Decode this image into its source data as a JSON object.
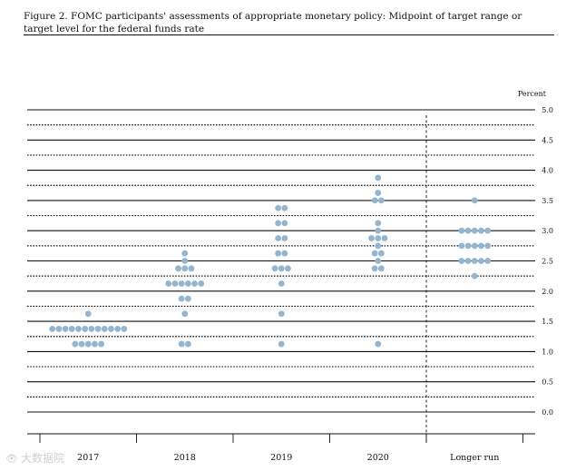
{
  "figure_title": "Figure 2. FOMC participants' assessments of appropriate monetary policy: Midpoint of target range or target level for the federal funds rate",
  "watermark": {
    "icon": "eye-icon",
    "text": "大数据院"
  },
  "chart_data": {
    "type": "scatter",
    "title": "Figure 2. FOMC participants' assessments of appropriate monetary policy: Midpoint of target range or target level for the federal funds rate",
    "unit_label": "Percent",
    "ylim": [
      0,
      5
    ],
    "y_ticks": [
      "0.0",
      "0.5",
      "1.0",
      "1.5",
      "2.0",
      "2.5",
      "3.0",
      "3.5",
      "4.0",
      "4.5",
      "5.0"
    ],
    "categories": [
      "2017",
      "2018",
      "2019",
      "2020",
      "Longer run"
    ],
    "dot_color": "#93b5cf",
    "columns": [
      {
        "category": "2017",
        "dots": [
          {
            "y": 1.625,
            "count": 1
          },
          {
            "y": 1.375,
            "count": 12
          },
          {
            "y": 1.125,
            "count": 5
          }
        ]
      },
      {
        "category": "2018",
        "dots": [
          {
            "y": 2.625,
            "count": 1
          },
          {
            "y": 2.5,
            "count": 1
          },
          {
            "y": 2.375,
            "count": 3
          },
          {
            "y": 2.125,
            "count": 6
          },
          {
            "y": 1.875,
            "count": 2
          },
          {
            "y": 1.625,
            "count": 1
          },
          {
            "y": 1.125,
            "count": 2
          }
        ]
      },
      {
        "category": "2019",
        "dots": [
          {
            "y": 3.375,
            "count": 2
          },
          {
            "y": 3.125,
            "count": 2
          },
          {
            "y": 2.875,
            "count": 2
          },
          {
            "y": 2.625,
            "count": 2
          },
          {
            "y": 2.375,
            "count": 3
          },
          {
            "y": 2.125,
            "count": 1
          },
          {
            "y": 1.625,
            "count": 1
          },
          {
            "y": 1.125,
            "count": 1
          }
        ]
      },
      {
        "category": "2020",
        "dots": [
          {
            "y": 3.875,
            "count": 1
          },
          {
            "y": 3.625,
            "count": 1
          },
          {
            "y": 3.5,
            "count": 2
          },
          {
            "y": 3.125,
            "count": 1
          },
          {
            "y": 3.0,
            "count": 1
          },
          {
            "y": 2.875,
            "count": 3
          },
          {
            "y": 2.75,
            "count": 1
          },
          {
            "y": 2.625,
            "count": 2
          },
          {
            "y": 2.5,
            "count": 1
          },
          {
            "y": 2.375,
            "count": 2
          },
          {
            "y": 1.125,
            "count": 1
          }
        ]
      },
      {
        "category": "Longer run",
        "dots": [
          {
            "y": 3.5,
            "count": 1
          },
          {
            "y": 3.0,
            "count": 5
          },
          {
            "y": 2.75,
            "count": 5
          },
          {
            "y": 2.5,
            "count": 5
          },
          {
            "y": 2.25,
            "count": 1
          }
        ]
      }
    ],
    "gridlines": "solid at whole and half percents, dotted at quarter percents",
    "separator_before": "Longer run"
  }
}
